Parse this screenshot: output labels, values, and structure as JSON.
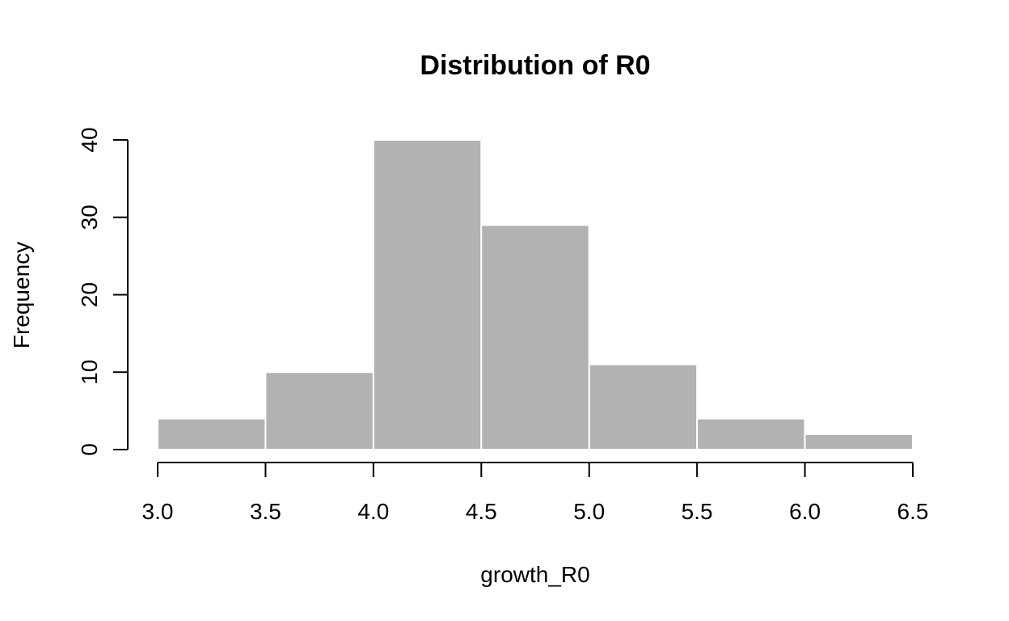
{
  "chart_data": {
    "type": "bar",
    "title": "Distribution of R0",
    "xlabel": "growth_R0",
    "ylabel": "Frequency",
    "bins": [
      {
        "start": 3.0,
        "end": 3.5,
        "count": 4
      },
      {
        "start": 3.5,
        "end": 4.0,
        "count": 10
      },
      {
        "start": 4.0,
        "end": 4.5,
        "count": 40
      },
      {
        "start": 4.5,
        "end": 5.0,
        "count": 29
      },
      {
        "start": 5.0,
        "end": 5.5,
        "count": 11
      },
      {
        "start": 5.5,
        "end": 6.0,
        "count": 4
      },
      {
        "start": 6.0,
        "end": 6.5,
        "count": 2
      }
    ],
    "xlim": [
      3.0,
      6.5
    ],
    "ylim": [
      0,
      40
    ],
    "x_ticks": [
      "3.0",
      "3.5",
      "4.0",
      "4.5",
      "5.0",
      "5.5",
      "6.0",
      "6.5"
    ],
    "y_ticks": [
      "0",
      "10",
      "20",
      "30",
      "40"
    ],
    "grid": false,
    "colors": {
      "bar_fill": "#b2b2b2",
      "bar_border": "#ffffff",
      "axis": "#000000"
    }
  }
}
